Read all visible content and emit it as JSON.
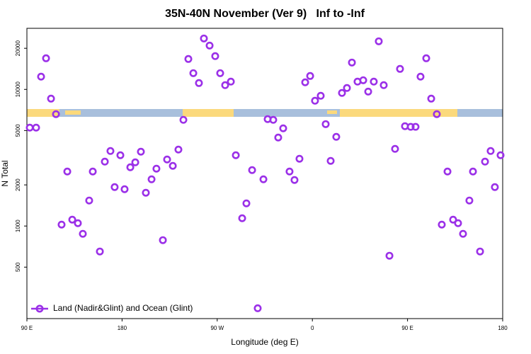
{
  "chart_data": {
    "type": "scatter",
    "title": "35N-40N November (Ver 9)   Inf to -Inf",
    "x_label": "Longitude (deg E)",
    "y_label": "N Total",
    "xlim": [
      90,
      540
    ],
    "xticks": [
      {
        "value": 90,
        "label": "90 E"
      },
      180,
      {
        "value": 270,
        "label": "90 W"
      },
      {
        "value": 360,
        "label": "0"
      },
      {
        "value": 450,
        "label": "90 E"
      },
      {
        "value": 540,
        "label": "180"
      }
    ],
    "ylim": [
      210,
      28000
    ],
    "yticks": [
      500,
      1000,
      2000,
      5000,
      10000,
      20000
    ],
    "log_y": true,
    "legend": "bottom-left",
    "x": [
      92.7,
      98.7,
      103.4,
      108.1,
      112.8,
      117.5,
      122.8,
      128.2,
      132.9,
      138.2,
      142.9,
      148.9,
      152.3,
      159.0,
      163.7,
      169.0,
      173.0,
      178.4,
      182.4,
      187.8,
      192.5,
      197.8,
      202.5,
      207.9,
      212.5,
      218.6,
      222.6,
      228.0,
      233.3,
      238.0,
      242.7,
      247.4,
      252.7,
      257.4,
      262.8,
      268.1,
      272.8,
      277.5,
      282.9,
      287.6,
      293.6,
      297.6,
      303.0,
      308.3,
      313.7,
      317.7,
      323.0,
      327.7,
      332.4,
      338.4,
      343.1,
      347.8,
      353.2,
      357.9,
      362.5,
      367.9,
      372.6,
      377.3,
      382.6,
      388.0,
      392.7,
      397.4,
      402.7,
      408.1,
      412.8,
      418.1,
      422.8,
      427.5,
      432.9,
      438.2,
      442.9,
      447.6,
      453.0,
      457.6,
      462.3,
      467.7,
      472.4,
      477.7,
      482.4,
      487.8,
      493.1,
      497.8,
      502.5,
      508.5,
      511.9,
      518.6,
      523.3,
      528.6,
      532.6,
      538.0
    ],
    "series": [
      {
        "name": "Land (Nadir&Glint) and Ocean (Glint)",
        "color": "#9b30e8",
        "values": [
          5250,
          5250,
          12400,
          16900,
          8560,
          6590,
          1024,
          2506,
          1113,
          1049,
          877,
          1537,
          2506,
          651,
          2961,
          3540,
          1927,
          3297,
          1860,
          2692,
          2925,
          3500,
          1752,
          2198,
          2629,
          788,
          3070,
          2757,
          3627,
          5985,
          16700,
          13150,
          11130,
          23600,
          20940,
          17520,
          13150,
          10740,
          11400,
          3297,
          1140,
          1465,
          2566,
          250,
          2198,
          6060,
          5985,
          4443,
          5190,
          2506,
          2172,
          3107,
          11270,
          12540,
          8260,
          8980,
          5570,
          2998,
          4496,
          9420,
          10240,
          15730,
          11400,
          11670,
          9640,
          11400,
          22500,
          10740,
          606,
          3670,
          14130,
          5380,
          5320,
          5320,
          12400,
          16900,
          8560,
          6590,
          1024,
          2506,
          1113,
          1049,
          877,
          1537,
          2506,
          651,
          2961,
          3540,
          1927,
          3297
        ]
      }
    ]
  }
}
